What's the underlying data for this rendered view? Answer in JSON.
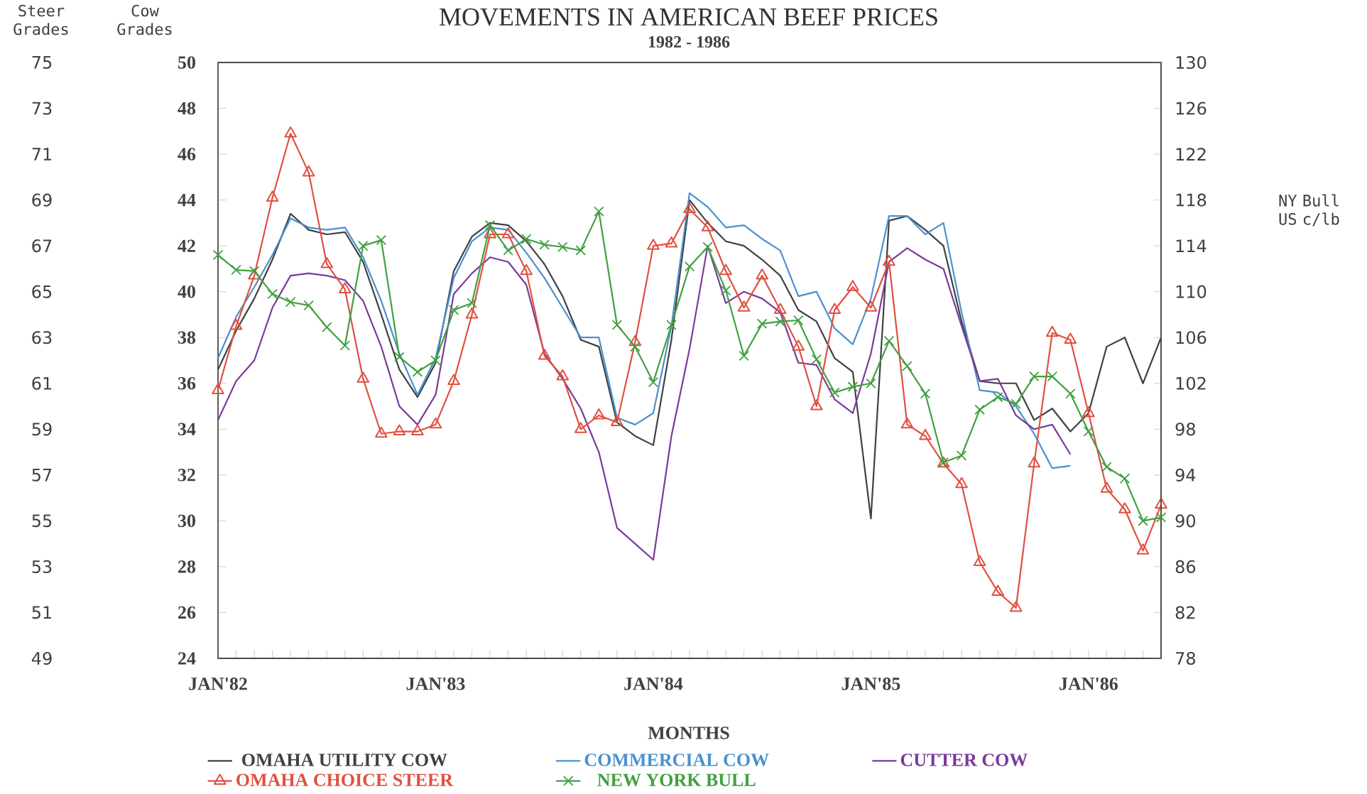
{
  "chart_data": {
    "type": "line",
    "title": "MOVEMENTS IN AMERICAN BEEF PRICES",
    "subtitle": "1982 - 1986",
    "xlabel": "MONTHS",
    "ylabel": "Cow Grades",
    "y2label": "Steer Grades",
    "y3label": "NY Bull US c/lb",
    "legend": "bottom",
    "x": [
      "1982-01",
      "1982-02",
      "1982-03",
      "1982-04",
      "1982-05",
      "1982-06",
      "1982-07",
      "1982-08",
      "1982-09",
      "1982-10",
      "1982-11",
      "1982-12",
      "1983-01",
      "1983-02",
      "1983-03",
      "1983-04",
      "1983-05",
      "1983-06",
      "1983-07",
      "1983-08",
      "1983-09",
      "1983-10",
      "1983-11",
      "1983-12",
      "1984-01",
      "1984-02",
      "1984-03",
      "1984-04",
      "1984-05",
      "1984-06",
      "1984-07",
      "1984-08",
      "1984-09",
      "1984-10",
      "1984-11",
      "1984-12",
      "1985-01",
      "1985-02",
      "1985-03",
      "1985-04",
      "1985-05",
      "1985-06",
      "1985-07",
      "1985-08",
      "1985-09",
      "1985-10",
      "1985-11",
      "1985-12",
      "1986-01",
      "1986-02",
      "1986-03",
      "1986-04",
      "1986-05"
    ],
    "xlim": [
      "1982-01",
      "1986-05"
    ],
    "xticks": [
      {
        "value": "1982-01",
        "label": "JAN'82"
      },
      {
        "value": "1982-02",
        "label": null
      },
      {
        "value": "1982-03",
        "label": null
      },
      {
        "value": "1982-04",
        "label": null
      },
      {
        "value": "1982-05",
        "label": null
      },
      {
        "value": "1982-06",
        "label": null
      },
      {
        "value": "1982-07",
        "label": null
      },
      {
        "value": "1982-08",
        "label": null
      },
      {
        "value": "1982-09",
        "label": null
      },
      {
        "value": "1982-10",
        "label": null
      },
      {
        "value": "1982-11",
        "label": null
      },
      {
        "value": "1982-12",
        "label": null
      },
      {
        "value": "1983-01",
        "label": "JAN'83"
      },
      {
        "value": "1983-02",
        "label": null
      },
      {
        "value": "1983-03",
        "label": null
      },
      {
        "value": "1983-04",
        "label": null
      },
      {
        "value": "1983-05",
        "label": null
      },
      {
        "value": "1983-06",
        "label": null
      },
      {
        "value": "1983-07",
        "label": null
      },
      {
        "value": "1983-08",
        "label": null
      },
      {
        "value": "1983-09",
        "label": null
      },
      {
        "value": "1983-10",
        "label": null
      },
      {
        "value": "1983-11",
        "label": null
      },
      {
        "value": "1983-12",
        "label": null
      },
      {
        "value": "1984-01",
        "label": "JAN'84"
      },
      {
        "value": "1984-02",
        "label": null
      },
      {
        "value": "1984-03",
        "label": null
      },
      {
        "value": "1984-04",
        "label": null
      },
      {
        "value": "1984-05",
        "label": null
      },
      {
        "value": "1984-06",
        "label": null
      },
      {
        "value": "1984-07",
        "label": null
      },
      {
        "value": "1984-08",
        "label": null
      },
      {
        "value": "1984-09",
        "label": null
      },
      {
        "value": "1984-10",
        "label": null
      },
      {
        "value": "1984-11",
        "label": null
      },
      {
        "value": "1984-12",
        "label": null
      },
      {
        "value": "1985-01",
        "label": "JAN'85"
      },
      {
        "value": "1985-02",
        "label": null
      },
      {
        "value": "1985-03",
        "label": null
      },
      {
        "value": "1985-04",
        "label": null
      },
      {
        "value": "1985-05",
        "label": null
      },
      {
        "value": "1985-06",
        "label": null
      },
      {
        "value": "1985-07",
        "label": null
      },
      {
        "value": "1985-08",
        "label": null
      },
      {
        "value": "1985-09",
        "label": null
      },
      {
        "value": "1985-10",
        "label": null
      },
      {
        "value": "1985-11",
        "label": null
      },
      {
        "value": "1985-12",
        "label": null
      },
      {
        "value": "1986-01",
        "label": "JAN'86"
      },
      {
        "value": "1986-02",
        "label": null
      },
      {
        "value": "1986-03",
        "label": null
      },
      {
        "value": "1986-04",
        "label": null
      },
      {
        "value": "1986-05",
        "label": null
      }
    ],
    "ylim": [
      24,
      50
    ],
    "yticks": [
      24,
      26,
      28,
      30,
      32,
      34,
      36,
      38,
      40,
      42,
      44,
      46,
      48,
      50
    ],
    "y2lim": [
      49,
      75
    ],
    "y2ticks": [
      49,
      51,
      53,
      55,
      57,
      59,
      61,
      63,
      65,
      67,
      69,
      71,
      73,
      75
    ],
    "y3lim": [
      78,
      130
    ],
    "y3ticks": [
      78,
      82,
      86,
      90,
      94,
      98,
      102,
      106,
      110,
      114,
      118,
      122,
      126,
      130
    ],
    "series": [
      {
        "name": "OMAHA UTILITY COW",
        "color": "#404040",
        "marker": "none",
        "values": [
          36.6,
          38.3,
          39.7,
          41.4,
          43.4,
          42.7,
          42.5,
          42.6,
          41.3,
          39.0,
          36.6,
          35.4,
          36.9,
          40.9,
          42.4,
          43.0,
          42.9,
          42.2,
          41.2,
          39.8,
          37.9,
          37.6,
          34.3,
          33.7,
          33.3,
          37.9,
          44.0,
          43.0,
          42.2,
          42.0,
          41.4,
          40.7,
          39.2,
          38.7,
          37.1,
          36.5,
          30.1,
          43.1,
          43.3,
          42.7,
          42.0,
          38.7,
          36.1,
          36.0,
          36.0,
          34.4,
          34.9,
          33.9,
          34.7,
          37.6,
          38.0,
          36.0,
          38.0
        ]
      },
      {
        "name": "COMMERCIAL COW",
        "color": "#4a90d0",
        "marker": "none",
        "values": [
          37.1,
          38.9,
          40.2,
          41.6,
          43.2,
          42.8,
          42.7,
          42.8,
          41.5,
          39.6,
          37.3,
          35.5,
          37.1,
          40.6,
          42.2,
          42.8,
          42.7,
          41.7,
          40.6,
          39.3,
          38.0,
          38.0,
          34.5,
          34.2,
          34.7,
          38.5,
          44.3,
          43.7,
          42.8,
          42.9,
          42.3,
          41.8,
          39.8,
          40.0,
          38.4,
          37.7,
          39.7,
          43.3,
          43.3,
          42.5,
          43.0,
          39.1,
          35.7,
          35.6,
          35.0,
          33.8,
          32.3,
          32.4,
          null,
          null,
          null,
          null,
          null
        ]
      },
      {
        "name": "CUTTER COW",
        "color": "#7a3a9a",
        "marker": "none",
        "values": [
          34.4,
          36.1,
          37.0,
          39.3,
          40.7,
          40.8,
          40.7,
          40.5,
          39.6,
          37.6,
          35.0,
          34.2,
          35.5,
          39.9,
          40.8,
          41.5,
          41.3,
          40.3,
          37.3,
          36.2,
          34.9,
          33.0,
          29.7,
          29.0,
          28.3,
          33.7,
          37.5,
          42.0,
          39.5,
          40.0,
          39.7,
          39.1,
          36.9,
          36.8,
          35.3,
          34.7,
          37.3,
          41.3,
          41.9,
          41.4,
          41.0,
          38.5,
          36.1,
          36.2,
          34.6,
          34.0,
          34.2,
          32.9,
          null,
          null,
          null,
          null,
          null
        ]
      },
      {
        "name": "OMAHA CHOICE STEER",
        "color": "#e05040",
        "marker": "triangle",
        "axis": "y2",
        "values": [
          60.7,
          63.5,
          65.7,
          69.1,
          71.9,
          70.2,
          66.2,
          65.1,
          61.2,
          58.8,
          58.9,
          58.9,
          59.2,
          61.1,
          64.0,
          67.5,
          67.5,
          65.9,
          62.2,
          61.3,
          59.0,
          59.6,
          59.3,
          62.8,
          67.0,
          67.1,
          68.6,
          67.8,
          65.9,
          64.3,
          65.7,
          64.2,
          62.6,
          60.0,
          64.2,
          65.2,
          64.3,
          66.3,
          59.2,
          58.7,
          57.5,
          56.6,
          53.2,
          51.9,
          51.2,
          57.5,
          63.2,
          62.9,
          59.7,
          56.4,
          55.5,
          53.7,
          55.7
        ]
      },
      {
        "name": "NEW YORK BULL",
        "color": "#40a040",
        "marker": "cross",
        "axis": "y3",
        "values": [
          113.2,
          111.9,
          111.8,
          109.8,
          109.1,
          108.8,
          106.9,
          105.3,
          114.0,
          114.5,
          104.3,
          103.0,
          104.0,
          108.4,
          109.0,
          115.8,
          113.6,
          114.6,
          114.1,
          113.9,
          113.6,
          117.0,
          107.1,
          105.2,
          102.1,
          107.1,
          112.2,
          113.9,
          110.1,
          104.4,
          107.2,
          107.4,
          107.5,
          104.1,
          101.2,
          101.7,
          102.0,
          105.7,
          103.5,
          101.1,
          95.1,
          95.7,
          99.7,
          100.8,
          100.2,
          102.6,
          102.6,
          101.1,
          97.8,
          94.7,
          93.7,
          90.0,
          90.3
        ]
      }
    ]
  }
}
